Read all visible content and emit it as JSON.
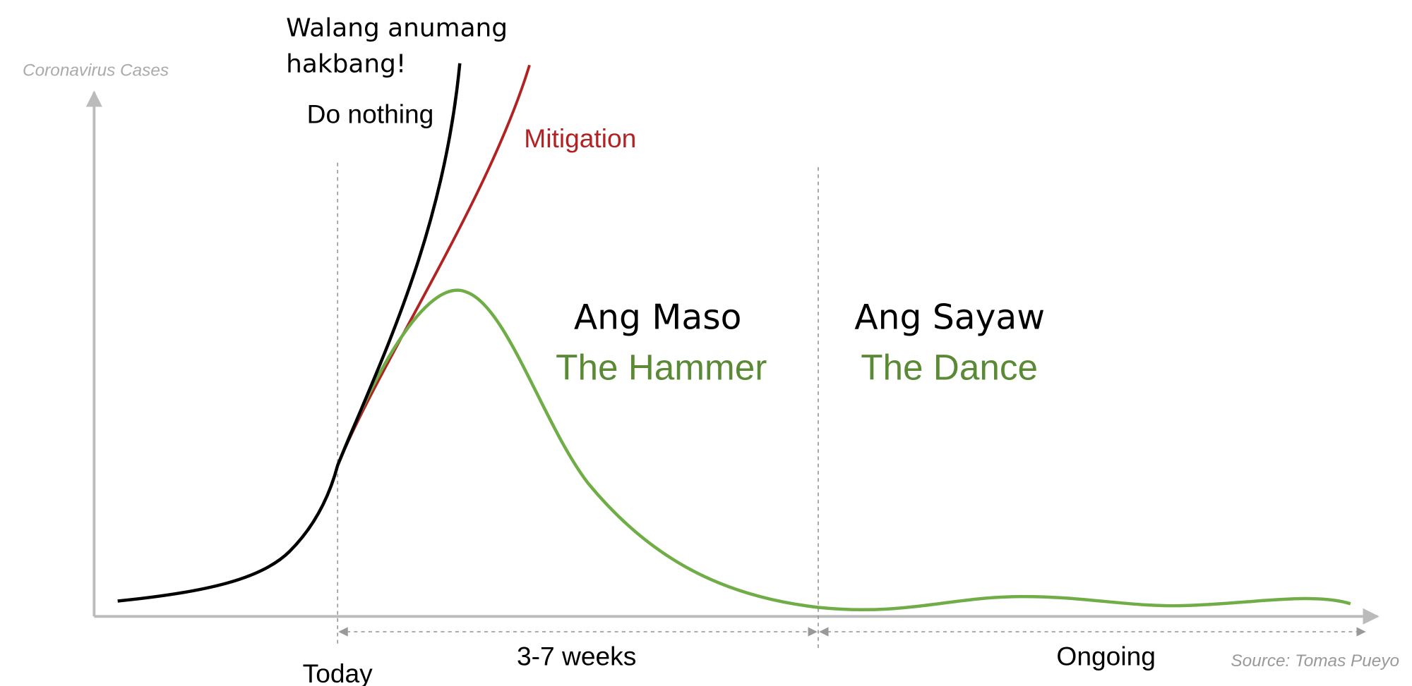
{
  "axis": {
    "y_label": "Coronavirus Cases"
  },
  "curves": {
    "do_nothing": {
      "label_tl": [
        "Walang anumang",
        "hakbang!"
      ],
      "label": "Do nothing"
    },
    "mitigation": {
      "label": "Mitigation"
    }
  },
  "phases": [
    {
      "title_tl": "Ang Maso",
      "title": "The Hammer",
      "duration": "3-7 weeks"
    },
    {
      "title_tl": "Ang Sayaw",
      "title": "The Dance",
      "duration": "Ongoing"
    }
  ],
  "marker": "Today",
  "source": "Source: Tomas Pueyo"
}
